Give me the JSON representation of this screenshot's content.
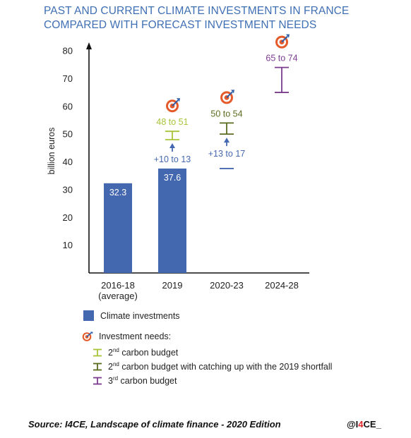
{
  "title_lines": [
    "PAST AND CURRENT CLIMATE INVESTMENTS IN FRANCE",
    "COMPARED WITH FORECAST INVESTMENT NEEDS"
  ],
  "chart_data": {
    "type": "bar",
    "ylabel": "billion euros",
    "ylim": [
      0,
      80
    ],
    "yticks": [
      10,
      20,
      30,
      40,
      50,
      60,
      70,
      80
    ],
    "categories": [
      [
        "2016-18",
        "(average)"
      ],
      [
        "2019"
      ],
      [
        "2020-23"
      ],
      [
        "2024-28"
      ]
    ],
    "bars": [
      {
        "category_index": 0,
        "value": 32.3,
        "label": "32.3"
      },
      {
        "category_index": 1,
        "value": 37.6,
        "label": "37.6"
      }
    ],
    "needs": [
      {
        "category_index": 1,
        "low": 48,
        "high": 51,
        "label": "48 to 51",
        "series": "2nd carbon budget"
      },
      {
        "category_index": 2,
        "low": 50,
        "high": 54,
        "label": "50 to 54",
        "series": "2nd carbon budget with catching up with the 2019 shortfall"
      },
      {
        "category_index": 3,
        "low": 65,
        "high": 74,
        "label": "65 to 74",
        "series": "3rd carbon budget"
      }
    ],
    "gaps": [
      {
        "category_index": 1,
        "from": 37.6,
        "to": 48,
        "label": "+10 to 13"
      },
      {
        "category_index": 2,
        "from": 37.6,
        "to": 50,
        "label": "+13 to 17"
      }
    ],
    "colors": {
      "bar": "#4468b0",
      "gap": "#4468b0",
      "2nd carbon budget": "#a8c43a",
      "2nd carbon budget with catching up with the 2019 shortfall": "#5a6d1e",
      "3rd carbon budget": "#7b3b8f"
    }
  },
  "legend": {
    "climate_investments": "Climate investments",
    "investment_needs": "Investment needs:",
    "items": [
      {
        "sup": "nd",
        "ordinal": "2",
        "text": " carbon budget",
        "color": "#a8c43a"
      },
      {
        "sup": "nd",
        "ordinal": "2",
        "text": " carbon budget with catching up with the 2019 shortfall",
        "color": "#5a6d1e"
      },
      {
        "sup": "rd",
        "ordinal": "3",
        "text": " carbon budget",
        "color": "#7b3b8f"
      }
    ]
  },
  "source": "Source: I4CE, Landscape of climate finance - 2020 Edition",
  "handle": {
    "pre": "@I",
    "accent": "4",
    "post": "CE_"
  },
  "icons": {
    "target": "target-icon"
  }
}
